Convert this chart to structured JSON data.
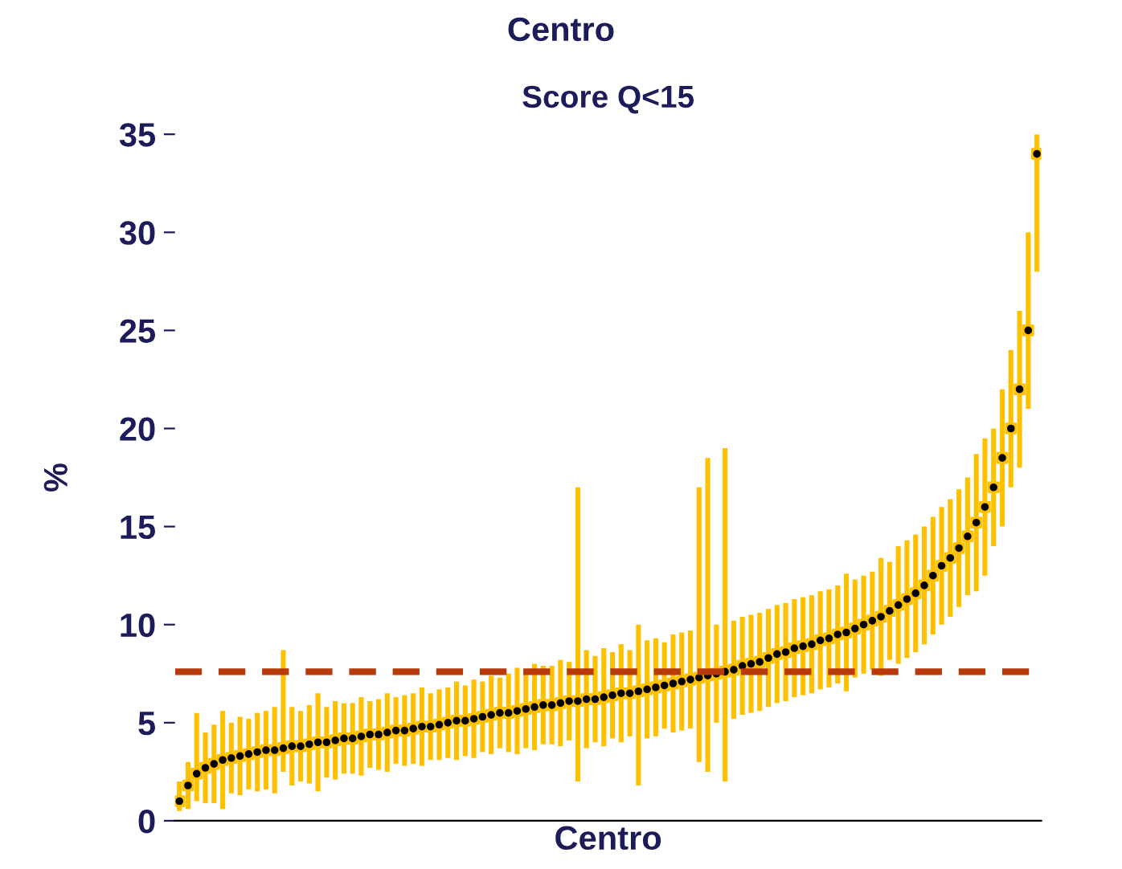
{
  "chart_data": {
    "type": "scatter",
    "title": "Score Q<15",
    "xlabel": "Centro",
    "ylabel": "%",
    "annotations": [
      "Centro"
    ],
    "categories": [
      null,
      null,
      null,
      null,
      null,
      null,
      null,
      null,
      null,
      null,
      null,
      null,
      null,
      null,
      null,
      null,
      null,
      null,
      null,
      null,
      null,
      null,
      null,
      null,
      null,
      null,
      null,
      null,
      null,
      null,
      null,
      null,
      null,
      null,
      null,
      null,
      null,
      null,
      null,
      null,
      null,
      null,
      null,
      null,
      null,
      null,
      null,
      null,
      null,
      null,
      null,
      null,
      null,
      null,
      null,
      null,
      null,
      null,
      null,
      null,
      null,
      null,
      null,
      null,
      null,
      null,
      null,
      null,
      null,
      null,
      null,
      null,
      null,
      null,
      null,
      null,
      null,
      null,
      null,
      null,
      null,
      null,
      null,
      null,
      null,
      null,
      null,
      null,
      null,
      null,
      null,
      null,
      null,
      null,
      null,
      null,
      null,
      null,
      null,
      null
    ],
    "series": [
      {
        "color": "#ffc000",
        "marker": "square",
        "values": [
          1.0,
          1.8,
          2.4,
          2.7,
          2.9,
          3.1,
          3.2,
          3.3,
          3.4,
          3.5,
          3.6,
          3.6,
          3.7,
          3.8,
          3.8,
          3.9,
          4.0,
          4.0,
          4.1,
          4.2,
          4.2,
          4.3,
          4.4,
          4.4,
          4.5,
          4.6,
          4.6,
          4.7,
          4.8,
          4.8,
          4.9,
          5.0,
          5.1,
          5.1,
          5.2,
          5.3,
          5.4,
          5.5,
          5.5,
          5.6,
          5.7,
          5.8,
          5.9,
          5.9,
          6.0,
          6.1,
          6.1,
          6.2,
          6.2,
          6.3,
          6.4,
          6.5,
          6.5,
          6.6,
          6.7,
          6.8,
          6.9,
          7.0,
          7.1,
          7.2,
          7.3,
          7.4,
          7.5,
          7.6,
          7.7,
          7.9,
          8.0,
          8.1,
          8.3,
          8.5,
          8.6,
          8.8,
          8.9,
          9.0,
          9.2,
          9.3,
          9.5,
          9.6,
          9.8,
          10.0,
          10.2,
          10.4,
          10.7,
          11.0,
          11.3,
          11.6,
          12.0,
          12.5,
          13.0,
          13.4,
          13.9,
          14.5,
          15.2,
          16.0,
          17.0,
          18.5,
          20.0,
          22.0,
          25.0,
          34.0
        ],
        "errors": [
          [
            0.5,
            2.0
          ],
          1.2,
          [
            1.0,
            5.5
          ],
          1.8,
          2.0,
          2.5,
          1.8,
          2.0,
          1.8,
          2.0,
          2.0,
          2.2,
          [
            2.5,
            8.7
          ],
          2.0,
          1.8,
          2.0,
          2.5,
          1.8,
          2.0,
          1.8,
          1.8,
          2.0,
          1.7,
          1.8,
          2.0,
          1.7,
          1.8,
          1.8,
          2.0,
          1.7,
          1.8,
          1.8,
          2.0,
          1.8,
          2.0,
          1.8,
          2.0,
          1.8,
          2.0,
          2.2,
          2.0,
          2.2,
          2.0,
          2.0,
          2.2,
          2.0,
          [
            2.0,
            17.0
          ],
          2.5,
          2.2,
          2.5,
          2.2,
          2.5,
          2.2,
          [
            1.8,
            10.0
          ],
          2.5,
          2.5,
          2.2,
          2.5,
          2.5,
          2.5,
          [
            3.0,
            17.0
          ],
          [
            2.5,
            18.5
          ],
          2.5,
          [
            2.0,
            19.0
          ],
          2.5,
          2.5,
          2.5,
          2.5,
          2.5,
          2.5,
          2.5,
          2.5,
          2.5,
          2.5,
          2.5,
          2.5,
          2.5,
          3.0,
          2.5,
          2.5,
          2.5,
          3.0,
          2.5,
          3.0,
          3.0,
          3.0,
          3.0,
          3.0,
          3.0,
          3.0,
          3.0,
          3.0,
          3.5,
          3.5,
          [
            14.0,
            20.0
          ],
          [
            15.0,
            22.0
          ],
          [
            17.0,
            24.0
          ],
          [
            18.0,
            26.0
          ],
          [
            21.0,
            30.0
          ],
          [
            28.0,
            35.0
          ]
        ]
      },
      {
        "color": "#000000",
        "marker": "circle",
        "values": [
          1.0,
          1.8,
          2.4,
          2.7,
          2.9,
          3.1,
          3.2,
          3.3,
          3.4,
          3.5,
          3.6,
          3.6,
          3.7,
          3.8,
          3.8,
          3.9,
          4.0,
          4.0,
          4.1,
          4.2,
          4.2,
          4.3,
          4.4,
          4.4,
          4.5,
          4.6,
          4.6,
          4.7,
          4.8,
          4.8,
          4.9,
          5.0,
          5.1,
          5.1,
          5.2,
          5.3,
          5.4,
          5.5,
          5.5,
          5.6,
          5.7,
          5.8,
          5.9,
          5.9,
          6.0,
          6.1,
          6.1,
          6.2,
          6.2,
          6.3,
          6.4,
          6.5,
          6.5,
          6.6,
          6.7,
          6.8,
          6.9,
          7.0,
          7.1,
          7.2,
          7.3,
          7.4,
          7.5,
          7.6,
          7.7,
          7.9,
          8.0,
          8.1,
          8.3,
          8.5,
          8.6,
          8.8,
          8.9,
          9.0,
          9.2,
          9.3,
          9.5,
          9.6,
          9.8,
          10.0,
          10.2,
          10.4,
          10.7,
          11.0,
          11.3,
          11.6,
          12.0,
          12.5,
          13.0,
          13.4,
          13.9,
          14.5,
          15.2,
          16.0,
          17.0,
          18.5,
          20.0,
          22.0,
          25.0,
          34.0
        ]
      }
    ],
    "ylim": [
      0,
      35
    ],
    "yticks": [
      0,
      5,
      10,
      15,
      20,
      25,
      30,
      35
    ],
    "ref_lines": [
      {
        "axis": "y",
        "value": 7.6,
        "color": "#b83a0a",
        "line_style": "dashed"
      }
    ],
    "tick_labels": "y",
    "grid": false,
    "legend": false
  }
}
